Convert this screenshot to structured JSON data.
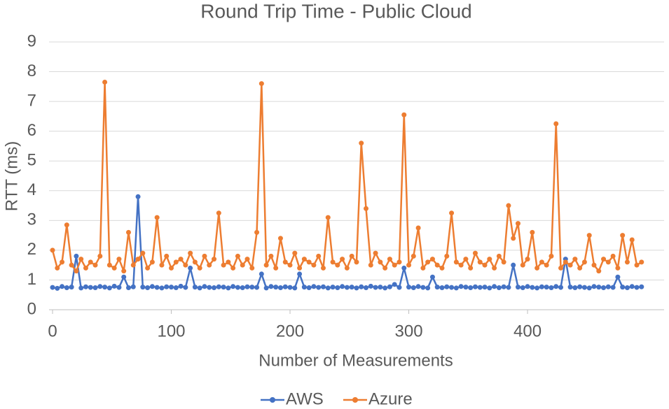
{
  "chart_data": {
    "type": "line",
    "title": "Round Trip Time - Public Cloud",
    "x_label": "Number of Measurements",
    "y_label": "RTT (ms)",
    "xlim": [
      0,
      515
    ],
    "xticks": [
      0,
      100,
      200,
      300,
      400
    ],
    "ylim": [
      0,
      9
    ],
    "yticks": [
      0,
      1,
      2,
      3,
      4,
      5,
      6,
      7,
      8,
      9
    ],
    "grid": true,
    "legend": "bottom",
    "x": [
      0,
      4,
      8,
      12,
      16,
      20,
      24,
      28,
      32,
      36,
      40,
      44,
      48,
      52,
      56,
      60,
      64,
      68,
      72,
      76,
      80,
      84,
      88,
      92,
      96,
      100,
      104,
      108,
      112,
      116,
      120,
      124,
      128,
      132,
      136,
      140,
      144,
      148,
      152,
      156,
      160,
      164,
      168,
      172,
      176,
      180,
      184,
      188,
      192,
      196,
      200,
      204,
      208,
      212,
      216,
      220,
      224,
      228,
      232,
      236,
      240,
      244,
      248,
      252,
      256,
      260,
      264,
      268,
      272,
      276,
      280,
      284,
      288,
      292,
      296,
      300,
      304,
      308,
      312,
      316,
      320,
      324,
      328,
      332,
      336,
      340,
      344,
      348,
      352,
      356,
      360,
      364,
      368,
      372,
      376,
      380,
      384,
      388,
      392,
      396,
      400,
      404,
      408,
      412,
      416,
      420,
      424,
      428,
      432,
      436,
      440,
      444,
      448,
      452,
      456,
      460,
      464,
      468,
      472,
      476,
      480,
      484,
      488,
      492,
      496
    ],
    "series": [
      {
        "name": "AWS",
        "color": "#4472c4",
        "values": [
          0.75,
          0.72,
          0.78,
          0.74,
          0.76,
          1.8,
          0.73,
          0.77,
          0.75,
          0.74,
          0.78,
          0.76,
          0.73,
          0.79,
          0.75,
          1.1,
          0.74,
          0.77,
          3.8,
          0.76,
          0.74,
          0.78,
          0.75,
          0.73,
          0.77,
          0.76,
          0.74,
          0.79,
          0.75,
          1.4,
          0.76,
          0.73,
          0.78,
          0.75,
          0.74,
          0.77,
          0.76,
          0.73,
          0.78,
          0.75,
          0.74,
          0.77,
          0.76,
          0.75,
          1.2,
          0.73,
          0.78,
          0.76,
          0.74,
          0.77,
          0.75,
          0.73,
          1.2,
          0.76,
          0.74,
          0.78,
          0.75,
          0.77,
          0.73,
          0.76,
          0.74,
          0.78,
          0.75,
          0.76,
          0.73,
          0.77,
          0.74,
          0.79,
          0.75,
          0.76,
          0.73,
          0.77,
          0.85,
          0.75,
          1.4,
          0.76,
          0.74,
          0.78,
          0.75,
          0.73,
          1.1,
          0.76,
          0.74,
          0.77,
          0.75,
          0.73,
          0.78,
          0.76,
          0.74,
          0.77,
          0.75,
          0.76,
          0.73,
          0.78,
          0.74,
          0.77,
          0.75,
          1.5,
          0.76,
          0.74,
          0.78,
          0.75,
          0.73,
          0.77,
          0.76,
          0.74,
          0.78,
          0.75,
          1.7,
          0.76,
          0.74,
          0.77,
          0.75,
          0.73,
          0.78,
          0.76,
          0.74,
          0.77,
          0.75,
          1.1,
          0.76,
          0.74,
          0.78,
          0.75,
          0.77
        ]
      },
      {
        "name": "Azure",
        "color": "#ed7d31",
        "values": [
          2.0,
          1.4,
          1.6,
          2.85,
          1.5,
          1.3,
          1.7,
          1.4,
          1.6,
          1.5,
          1.8,
          7.65,
          1.5,
          1.4,
          1.7,
          1.3,
          2.6,
          1.5,
          1.7,
          1.9,
          1.4,
          1.6,
          3.1,
          1.5,
          1.8,
          1.4,
          1.6,
          1.7,
          1.5,
          1.9,
          1.6,
          1.4,
          1.8,
          1.5,
          1.7,
          3.25,
          1.5,
          1.6,
          1.4,
          1.8,
          1.5,
          1.7,
          1.4,
          2.6,
          7.6,
          1.5,
          1.8,
          1.4,
          2.4,
          1.6,
          1.5,
          1.9,
          1.4,
          1.7,
          1.6,
          1.5,
          1.8,
          1.4,
          3.1,
          1.6,
          1.5,
          1.7,
          1.4,
          1.8,
          1.6,
          5.6,
          3.4,
          1.5,
          1.9,
          1.6,
          1.4,
          1.7,
          1.5,
          1.6,
          6.55,
          1.5,
          1.8,
          2.75,
          1.4,
          1.6,
          1.7,
          1.5,
          1.4,
          1.8,
          3.25,
          1.6,
          1.5,
          1.7,
          1.4,
          1.9,
          1.6,
          1.5,
          1.7,
          1.4,
          1.8,
          1.6,
          3.5,
          2.4,
          2.9,
          1.5,
          1.7,
          2.6,
          1.4,
          1.6,
          1.5,
          1.8,
          6.25,
          1.4,
          1.6,
          1.5,
          1.7,
          1.4,
          1.6,
          2.5,
          1.5,
          1.3,
          1.7,
          1.6,
          1.8,
          1.4,
          2.5,
          1.6,
          2.35,
          1.5,
          1.6
        ]
      }
    ]
  }
}
